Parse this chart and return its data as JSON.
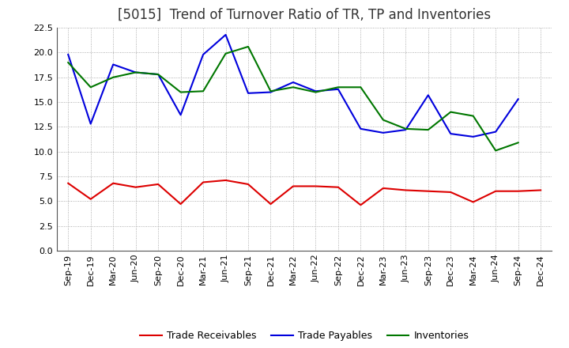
{
  "title": "[5015]  Trend of Turnover Ratio of TR, TP and Inventories",
  "labels": [
    "Sep-19",
    "Dec-19",
    "Mar-20",
    "Jun-20",
    "Sep-20",
    "Dec-20",
    "Mar-21",
    "Jun-21",
    "Sep-21",
    "Dec-21",
    "Mar-22",
    "Jun-22",
    "Sep-22",
    "Dec-22",
    "Mar-23",
    "Jun-23",
    "Sep-23",
    "Dec-23",
    "Mar-24",
    "Jun-24",
    "Sep-24",
    "Dec-24"
  ],
  "trade_receivables": [
    6.8,
    5.2,
    6.8,
    6.4,
    6.7,
    4.7,
    6.9,
    7.1,
    6.7,
    4.7,
    6.5,
    6.5,
    6.4,
    4.6,
    6.3,
    6.1,
    6.0,
    5.9,
    4.9,
    6.0,
    6.0,
    6.1
  ],
  "trade_payables": [
    19.8,
    12.8,
    18.8,
    18.0,
    17.8,
    13.7,
    19.8,
    21.8,
    15.9,
    16.0,
    17.0,
    16.1,
    16.3,
    12.3,
    11.9,
    12.2,
    15.7,
    11.8,
    11.5,
    12.0,
    15.3,
    null
  ],
  "inventories": [
    19.0,
    16.5,
    17.5,
    18.0,
    17.8,
    16.0,
    16.1,
    19.9,
    20.6,
    16.1,
    16.5,
    16.0,
    16.5,
    16.5,
    13.2,
    12.3,
    12.2,
    14.0,
    13.6,
    10.1,
    10.9,
    null
  ],
  "tr_color": "#dd0000",
  "tp_color": "#0000dd",
  "inv_color": "#007700",
  "ylim": [
    0,
    22.5
  ],
  "yticks": [
    0.0,
    2.5,
    5.0,
    7.5,
    10.0,
    12.5,
    15.0,
    17.5,
    20.0,
    22.5
  ],
  "background_color": "#ffffff",
  "grid_color": "#999999",
  "title_fontsize": 12,
  "title_color": "#333333",
  "tick_fontsize": 8,
  "legend_labels": [
    "Trade Receivables",
    "Trade Payables",
    "Inventories"
  ]
}
